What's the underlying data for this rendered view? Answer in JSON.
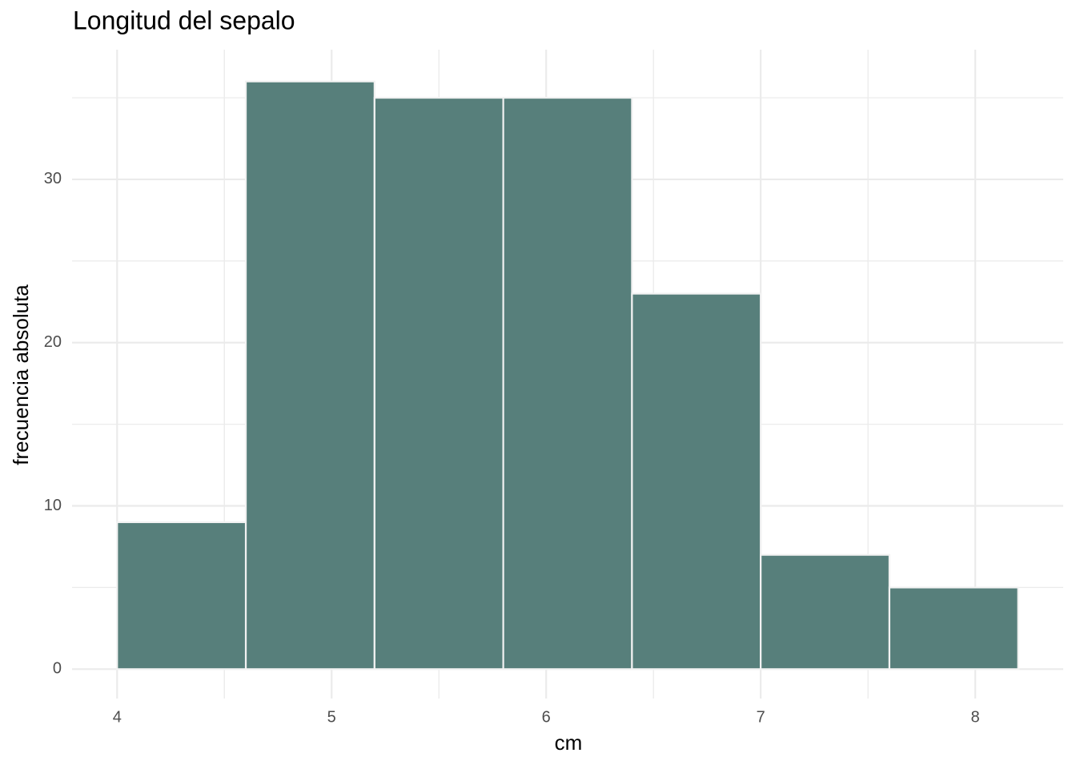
{
  "chart_data": {
    "type": "histogram",
    "title": "Longitud del sepalo",
    "x_label": "cm",
    "y_label": "frecuencia absoluta",
    "bins": [
      4.0,
      4.6,
      5.2,
      5.8,
      6.4,
      7.0,
      7.6,
      8.2
    ],
    "values": [
      9,
      36,
      35,
      35,
      23,
      7,
      5
    ],
    "color": "#577f7b",
    "edge_color": "#f2f2f2",
    "xlim": [
      3.79,
      8.41
    ],
    "ylim": [
      -1.8,
      37.8
    ],
    "xticks": [
      4,
      5,
      6,
      7,
      8
    ],
    "yticks": [
      0,
      10,
      20,
      30
    ],
    "grid": true
  }
}
